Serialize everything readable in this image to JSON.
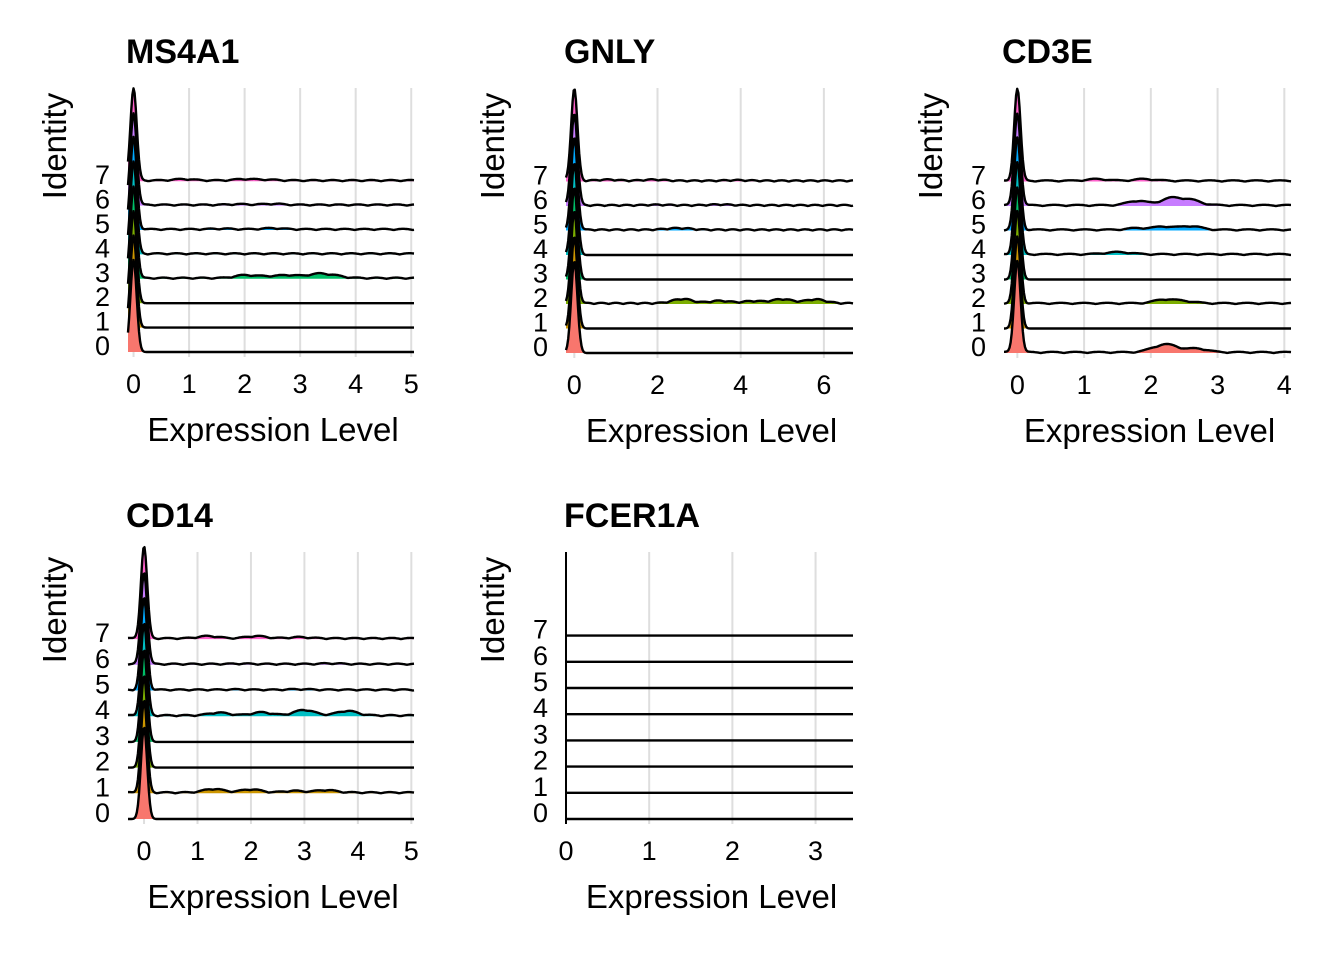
{
  "chart_data": [
    {
      "type": "ridgeline",
      "title": "MS4A1",
      "xlabel": "Expression Level",
      "ylabel": "Identity",
      "xlim": [
        -0.1,
        5.05
      ],
      "xticks": [
        0,
        1,
        2,
        3,
        4,
        5
      ],
      "categories": [
        "0",
        "1",
        "2",
        "3",
        "4",
        "5",
        "6",
        "7"
      ],
      "peak_x": 0,
      "tails": [
        [],
        [],
        [],
        [
          [
            2.0,
            2.4,
            2.8,
            3.3,
            3.6
          ]
        ],
        [],
        [
          [
            1.6,
            2.5
          ]
        ],
        [
          [
            1.9,
            2.5
          ]
        ],
        [
          [
            0.9,
            2.0,
            2.4
          ]
        ]
      ],
      "tail_mass": [
        0.0,
        0.0,
        0.0,
        0.3,
        0.02,
        0.1,
        0.08,
        0.12
      ]
    },
    {
      "type": "ridgeline",
      "title": "GNLY",
      "xlabel": "Expression Level",
      "ylabel": "Identity",
      "xlim": [
        -0.2,
        6.7
      ],
      "xticks": [
        0,
        2,
        4,
        6
      ],
      "categories": [
        "0",
        "1",
        "2",
        "3",
        "4",
        "5",
        "6",
        "7"
      ],
      "peak_x": 0,
      "tails": [
        [],
        [],
        [
          [
            2.6,
            3.5,
            4.3,
            5.0,
            5.8
          ]
        ],
        [],
        [],
        [
          [
            2.3,
            2.6
          ]
        ],
        [
          [
            2.0,
            3.5
          ]
        ],
        [
          [
            0.8,
            1.9,
            3.9
          ]
        ]
      ],
      "tail_mass": [
        0.0,
        0.0,
        0.35,
        0.0,
        0.0,
        0.12,
        0.06,
        0.1
      ]
    },
    {
      "type": "ridgeline",
      "title": "CD3E",
      "xlabel": "Expression Level",
      "ylabel": "Identity",
      "xlim": [
        -0.2,
        4.1
      ],
      "xticks": [
        0,
        1,
        2,
        3,
        4
      ],
      "categories": [
        "0",
        "1",
        "2",
        "3",
        "4",
        "5",
        "6",
        "7"
      ],
      "peak_x": 0,
      "tails": [
        [
          [
            2.1,
            2.3,
            2.7
          ]
        ],
        [],
        [
          [
            2.2,
            2.5
          ]
        ],
        [],
        [
          [
            1.4,
            1.6
          ]
        ],
        [
          [
            1.8,
            2.2,
            2.6
          ]
        ],
        [
          [
            1.8,
            2.3,
            2.6
          ]
        ],
        [
          [
            1.2,
            1.9
          ]
        ]
      ],
      "tail_mass": [
        0.45,
        0.0,
        0.3,
        0.0,
        0.2,
        0.3,
        0.55,
        0.15
      ]
    },
    {
      "type": "ridgeline",
      "title": "CD14",
      "xlabel": "Expression Level",
      "ylabel": "Identity",
      "xlim": [
        -0.3,
        5.05
      ],
      "xticks": [
        0,
        1,
        2,
        3,
        4,
        5
      ],
      "categories": [
        "0",
        "1",
        "2",
        "3",
        "4",
        "5",
        "6",
        "7"
      ],
      "peak_x": 0,
      "tails": [
        [],
        [
          [
            1.3,
            2.0,
            2.8,
            3.4
          ]
        ],
        [],
        [],
        [
          [
            1.4,
            2.2,
            3.0,
            3.8
          ]
        ],
        [
          [
            1.7,
            2.9
          ]
        ],
        [
          [
            1.8,
            3.5
          ]
        ],
        [
          [
            1.2,
            2.1,
            2.9
          ]
        ]
      ],
      "tail_mass": [
        0.0,
        0.3,
        0.0,
        0.0,
        0.45,
        0.05,
        0.05,
        0.2
      ]
    },
    {
      "type": "ridgeline",
      "title": "FCER1A",
      "xlabel": "Expression Level",
      "ylabel": "Identity",
      "xlim": [
        0,
        3.45
      ],
      "xticks": [
        0,
        1,
        2,
        3
      ],
      "categories": [
        "0",
        "1",
        "2",
        "3",
        "4",
        "5",
        "6",
        "7"
      ],
      "peak_x": null,
      "tails": [
        [],
        [],
        [],
        [],
        [],
        [],
        [],
        []
      ],
      "tail_mass": [
        0,
        0,
        0,
        0,
        0,
        0,
        0,
        0
      ]
    }
  ],
  "colors": {
    "groups": [
      "#F8766D",
      "#CD9600",
      "#7CAE00",
      "#00BE67",
      "#00BFC4",
      "#00A9FF",
      "#C77CFF",
      "#FF61CC"
    ],
    "grid": "#dedede",
    "line": "#000000"
  }
}
